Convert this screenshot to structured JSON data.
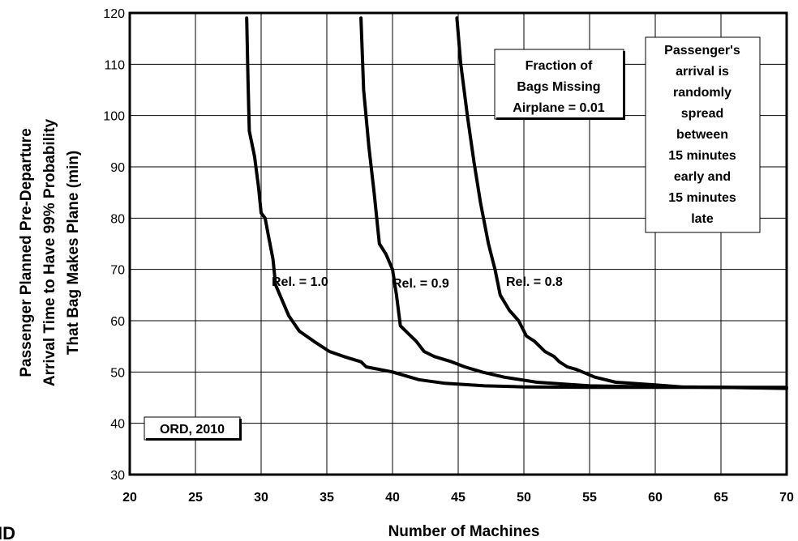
{
  "chart_data": {
    "type": "line",
    "xlabel": "Number of Machines",
    "ylabel_lines": [
      "Passenger Planned Pre-Departure",
      "Arrival Time to Have 99% Probability",
      "That Bag Makes Plane (min)"
    ],
    "xlim": [
      20,
      70
    ],
    "ylim": [
      30,
      120
    ],
    "xticks": [
      20,
      25,
      30,
      35,
      40,
      45,
      50,
      55,
      60,
      65,
      70
    ],
    "yticks": [
      30,
      40,
      50,
      60,
      70,
      80,
      90,
      100,
      110,
      120
    ],
    "grid": "horizontal and vertical",
    "series": [
      {
        "name": "Rel. = 1.0",
        "x": [
          28.9,
          29.0,
          29.1,
          29.5,
          29.8,
          30.0,
          30.3,
          30.6,
          30.9,
          31.1,
          31.6,
          32.1,
          32.9,
          34.0,
          35.2,
          36.3,
          37.6,
          38.0,
          40.0,
          42.0,
          44.0,
          47.0,
          50.0,
          55.0,
          60.0,
          65.0,
          70.0
        ],
        "y": [
          119,
          107,
          97,
          92,
          86,
          81,
          80,
          76,
          72,
          67,
          64,
          61,
          58,
          56,
          54,
          53,
          52,
          51,
          50,
          48.5,
          47.8,
          47.3,
          47.1,
          47.0,
          47.0,
          47.0,
          47.0
        ]
      },
      {
        "name": "Rel. = 0.9",
        "x": [
          37.6,
          37.8,
          38.2,
          38.6,
          39.0,
          39.5,
          40.0,
          40.3,
          40.6,
          41.0,
          41.8,
          42.4,
          43.2,
          44.5,
          45.5,
          46.8,
          48.5,
          51.0,
          55.0,
          60.0,
          65.0,
          70.0
        ],
        "y": [
          119,
          105,
          94,
          85,
          75,
          73,
          70,
          65,
          59,
          58,
          56,
          54,
          53,
          52,
          51,
          50,
          49,
          48,
          47.3,
          47.1,
          47.0,
          46.9
        ]
      },
      {
        "name": "Rel. = 0.8",
        "x": [
          44.9,
          45.2,
          45.7,
          46.2,
          46.7,
          47.3,
          47.8,
          48.2,
          48.9,
          49.6,
          50.2,
          50.8,
          51.6,
          52.3,
          52.7,
          53.3,
          54.0,
          55.4,
          57.0,
          60.0,
          62.0,
          65.0,
          70.0
        ],
        "y": [
          119,
          110,
          100,
          91,
          83,
          75,
          70,
          65,
          62,
          60,
          57,
          56,
          54,
          53,
          52,
          51,
          50.5,
          49,
          48,
          47.5,
          47.1,
          47.0,
          46.8
        ]
      }
    ],
    "annotations": {
      "fraction_box": [
        "Fraction of",
        "Bags Missing",
        "Airplane = 0.01"
      ],
      "passenger_box": [
        "Passenger's",
        "arrival is",
        "randomly",
        "spread",
        "between",
        "15 minutes",
        "early and",
        "15 minutes",
        "late"
      ],
      "location_box": "ORD, 2010",
      "corner_text": "ID"
    }
  }
}
